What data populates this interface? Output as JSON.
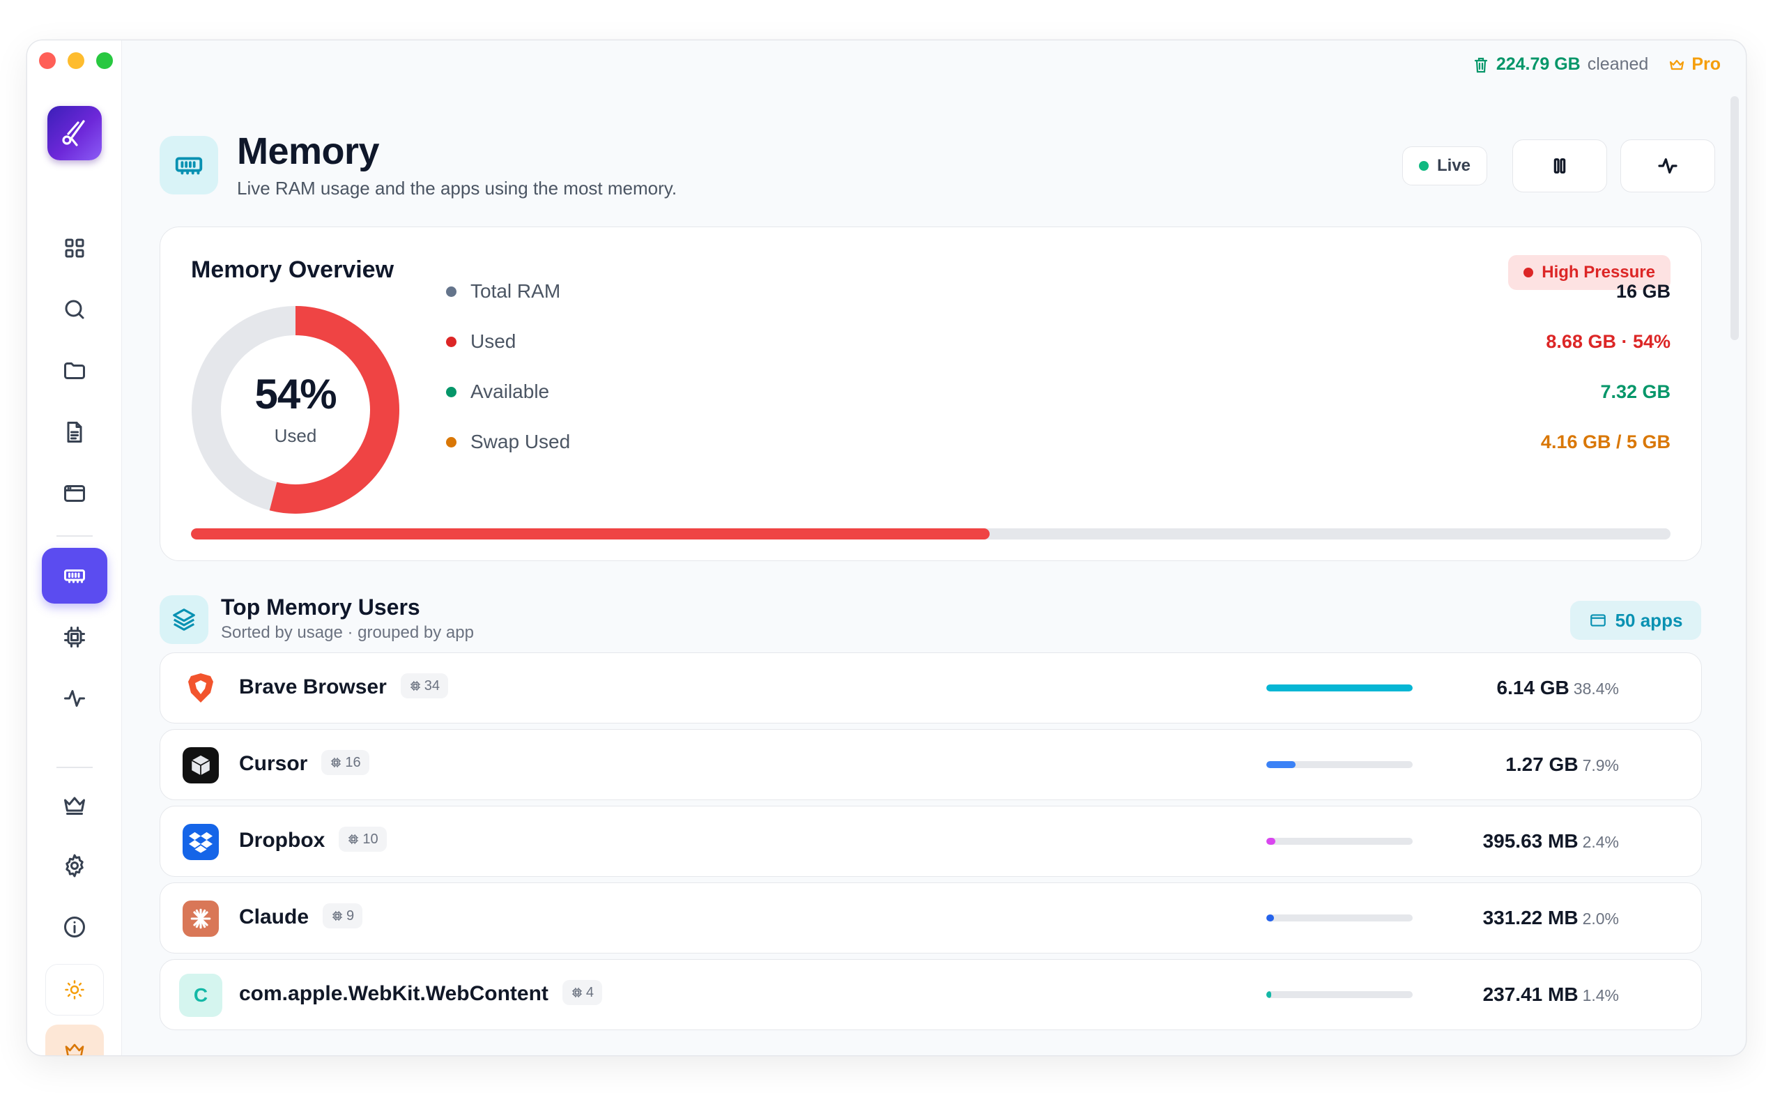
{
  "topbar": {
    "cleaned_value": "224.79 GB",
    "cleaned_label": "cleaned",
    "pro_label": "Pro"
  },
  "header": {
    "title": "Memory",
    "subtitle": "Live RAM usage and the apps using the most memory.",
    "live_label": "Live"
  },
  "sidebar": {
    "items": [
      "grid-icon",
      "search-icon",
      "folder-icon",
      "document-icon",
      "window-icon",
      "memory-icon",
      "cpu-icon",
      "activity-icon",
      "crown-icon",
      "gear-icon",
      "info-icon",
      "sun-icon",
      "crown-icon"
    ],
    "active": "memory-icon"
  },
  "overview": {
    "title": "Memory Overview",
    "pressure_label": "High Pressure",
    "used_percent": 54,
    "donut_value": "54%",
    "donut_label": "Used",
    "stats": [
      {
        "label": "Total RAM",
        "value": "16 GB",
        "color": "#64748b",
        "value_color": "#111827"
      },
      {
        "label": "Used",
        "value": "8.68 GB · 54%",
        "color": "#dc2626",
        "value_color": "#dc2626"
      },
      {
        "label": "Available",
        "value": "7.32 GB",
        "color": "#059669",
        "value_color": "#059669"
      },
      {
        "label": "Swap Used",
        "value": "4.16 GB / 5 GB",
        "color": "#d97706",
        "value_color": "#d97706"
      }
    ]
  },
  "top_users": {
    "title": "Top Memory Users",
    "subtitle": "Sorted by usage · grouped by app",
    "apps_count": "50 apps",
    "rows": [
      {
        "name": "Brave Browser",
        "procs": "34",
        "size": "6.14 GB",
        "pct": "38.4%",
        "bar": 1.0,
        "bar_color": "#06b6d4",
        "icon": "brave-icon"
      },
      {
        "name": "Cursor",
        "procs": "16",
        "size": "1.27 GB",
        "pct": "7.9%",
        "bar": 0.2,
        "bar_color": "#3b82f6",
        "icon": "cursor-icon"
      },
      {
        "name": "Dropbox",
        "procs": "10",
        "size": "395.63 MB",
        "pct": "2.4%",
        "bar": 0.06,
        "bar_color": "#d946ef",
        "icon": "dropbox-icon"
      },
      {
        "name": "Claude",
        "procs": "9",
        "size": "331.22 MB",
        "pct": "2.0%",
        "bar": 0.05,
        "bar_color": "#2563eb",
        "icon": "claude-icon"
      },
      {
        "name": "com.apple.WebKit.WebContent",
        "procs": "4",
        "size": "237.41 MB",
        "pct": "1.4%",
        "bar": 0.035,
        "bar_color": "#14b8a6",
        "icon": "letter-c-icon",
        "letter": "C"
      }
    ]
  }
}
